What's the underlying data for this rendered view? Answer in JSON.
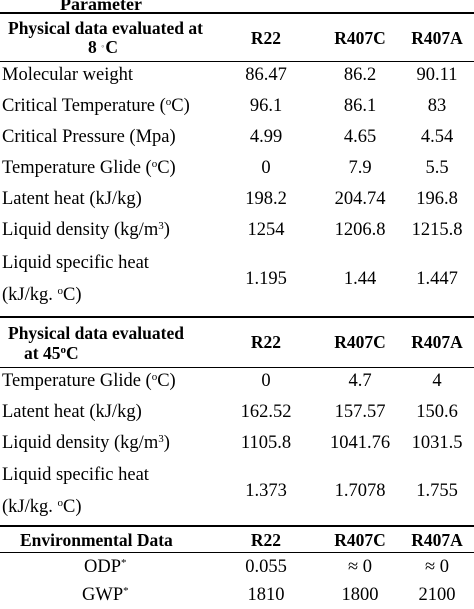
{
  "top_caption": "Parameter",
  "section1": {
    "header": {
      "label_line1": "Physical data evaluated at",
      "label_line2_prefix": "8 ",
      "label_line2_unit": "C",
      "col1": "R22",
      "col2": "R407C",
      "col3": "R407A"
    },
    "rows": [
      {
        "label": "Molecular weight",
        "v1": "86.47",
        "v2": "86.2",
        "v3": "90.11"
      },
      {
        "label_pre": "Critical Temperature (",
        "sup": "o",
        "label_post": "C)",
        "v1": "96.1",
        "v2": "86.1",
        "v3": "83"
      },
      {
        "label": "Critical Pressure (Mpa)",
        "v1": "4.99",
        "v2": "4.65",
        "v3": "4.54"
      },
      {
        "label_pre": "Temperature Glide (",
        "sup": "o",
        "label_post": "C)",
        "v1": "0",
        "v2": "7.9",
        "v3": "5.5"
      },
      {
        "label": "Latent heat (kJ/kg)",
        "v1": "198.2",
        "v2": "204.74",
        "v3": "196.8"
      },
      {
        "label_pre": "Liquid density (kg/m",
        "sup": "3",
        "label_post": ")",
        "v1": "1254",
        "v2": "1206.8",
        "v3": "1215.8"
      },
      {
        "label_line1": "Liquid specific heat",
        "label_line2_pre": "(kJ/kg. ",
        "sup": "o",
        "label_line2_post": "C)",
        "v1": "1.195",
        "v2": "1.44",
        "v3": "1.447"
      }
    ]
  },
  "section2": {
    "header": {
      "label_line1": "Physical data evaluated",
      "label_line2_pre": "at 45",
      "sup": "o",
      "label_line2_post": "C",
      "col1": "R22",
      "col2": "R407C",
      "col3": "R407A"
    },
    "rows": [
      {
        "label_pre": "Temperature Glide (",
        "sup": "o",
        "label_post": "C)",
        "v1": "0",
        "v2": "4.7",
        "v3": "4"
      },
      {
        "label": "Latent heat (kJ/kg)",
        "v1": "162.52",
        "v2": "157.57",
        "v3": "150.6"
      },
      {
        "label_pre": "Liquid density (kg/m",
        "sup": "3",
        "label_post": ")",
        "v1": "1105.8",
        "v2": "1041.76",
        "v3": "1031.5"
      },
      {
        "label_line1": "Liquid specific heat",
        "label_line2_pre": "(kJ/kg. ",
        "sup": "o",
        "label_line2_post": "C)",
        "v1": "1.373",
        "v2": "1.7078",
        "v3": "1.755"
      }
    ]
  },
  "section3": {
    "header": {
      "label": "Environmental Data",
      "col1": "R22",
      "col2": "R407C",
      "col3": "R407A"
    },
    "rows": [
      {
        "label": "ODP",
        "sup": "*",
        "v1": "0.055",
        "v2": "≈ 0",
        "v3": "≈ 0"
      },
      {
        "label": "GWP",
        "sup": "*",
        "v1": "1810",
        "v2": "1800",
        "v3": "2100"
      }
    ]
  }
}
